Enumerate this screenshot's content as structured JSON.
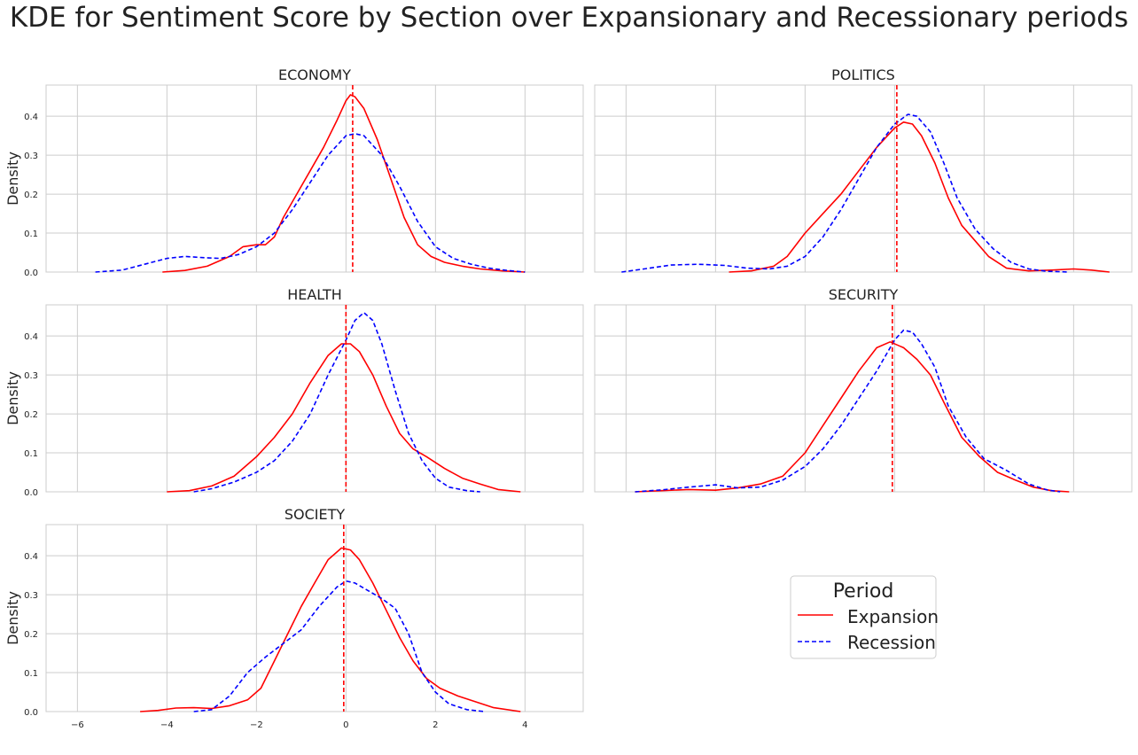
{
  "title": "KDE for Sentiment Score by Section over Expansionary and Recessionary periods",
  "colors": {
    "expansion": "#ff0000",
    "recession": "#0000ff",
    "grid": "#cccccc",
    "frame": "#cccccc",
    "mean_line": "#ff0000"
  },
  "legend": {
    "title": "Period",
    "items": [
      "Expansion",
      "Recession"
    ],
    "placement": "center-right"
  },
  "chart_data": [
    {
      "type": "line",
      "title": "ECONOMY",
      "xlabel": "",
      "ylabel": "Density",
      "xlim": [
        -6.7,
        5.3
      ],
      "ylim": [
        0,
        0.48
      ],
      "xticks": [
        -6,
        -4,
        -2,
        0,
        2,
        4
      ],
      "yticks": [
        0.0,
        0.1,
        0.2,
        0.3,
        0.4
      ],
      "grid": true,
      "mean_line": 0.15,
      "series": [
        {
          "name": "Expansion",
          "style": "solid",
          "x": [
            -4.1,
            -3.6,
            -3.1,
            -2.6,
            -2.3,
            -2.0,
            -1.8,
            -1.6,
            -1.4,
            -1.1,
            -0.8,
            -0.5,
            -0.2,
            0.0,
            0.1,
            0.2,
            0.4,
            0.7,
            1.0,
            1.3,
            1.6,
            1.9,
            2.2,
            2.6,
            3.0,
            3.5,
            4.0
          ],
          "y": [
            0.0,
            0.004,
            0.015,
            0.04,
            0.065,
            0.07,
            0.07,
            0.09,
            0.14,
            0.2,
            0.26,
            0.32,
            0.39,
            0.44,
            0.455,
            0.45,
            0.42,
            0.34,
            0.24,
            0.14,
            0.07,
            0.04,
            0.025,
            0.015,
            0.008,
            0.003,
            0.0
          ]
        },
        {
          "name": "Recession",
          "style": "dashed",
          "x": [
            -5.6,
            -5.0,
            -4.5,
            -4.0,
            -3.6,
            -3.2,
            -2.8,
            -2.4,
            -2.0,
            -1.6,
            -1.2,
            -0.8,
            -0.4,
            0.0,
            0.2,
            0.4,
            0.8,
            1.2,
            1.6,
            2.0,
            2.4,
            2.8,
            3.2,
            3.6,
            4.0
          ],
          "y": [
            0.0,
            0.005,
            0.02,
            0.035,
            0.04,
            0.037,
            0.035,
            0.045,
            0.065,
            0.1,
            0.16,
            0.23,
            0.3,
            0.35,
            0.355,
            0.35,
            0.3,
            0.22,
            0.13,
            0.065,
            0.035,
            0.02,
            0.01,
            0.004,
            0.0
          ]
        }
      ]
    },
    {
      "type": "line",
      "title": "POLITICS",
      "xlabel": "",
      "ylabel": "",
      "xlim": [
        -6.7,
        5.3
      ],
      "ylim": [
        0,
        0.48
      ],
      "xticks": [
        -6,
        -4,
        -2,
        0,
        2,
        4
      ],
      "yticks": [
        0.0,
        0.1,
        0.2,
        0.3,
        0.4
      ],
      "grid": true,
      "mean_line": 0.05,
      "series": [
        {
          "name": "Expansion",
          "style": "solid",
          "x": [
            -3.7,
            -3.2,
            -2.7,
            -2.4,
            -2.0,
            -1.6,
            -1.2,
            -0.8,
            -0.4,
            0.0,
            0.2,
            0.4,
            0.6,
            0.9,
            1.2,
            1.5,
            1.8,
            2.1,
            2.5,
            3.0,
            3.5,
            4.0,
            4.4,
            4.8
          ],
          "y": [
            0.0,
            0.003,
            0.015,
            0.04,
            0.1,
            0.15,
            0.2,
            0.26,
            0.32,
            0.37,
            0.385,
            0.38,
            0.35,
            0.28,
            0.19,
            0.12,
            0.08,
            0.04,
            0.01,
            0.003,
            0.005,
            0.008,
            0.005,
            0.0
          ]
        },
        {
          "name": "Recession",
          "style": "dashed",
          "x": [
            -6.1,
            -5.6,
            -5.0,
            -4.4,
            -3.8,
            -3.3,
            -2.8,
            -2.4,
            -2.0,
            -1.6,
            -1.2,
            -0.8,
            -0.4,
            0.0,
            0.3,
            0.5,
            0.8,
            1.1,
            1.4,
            1.8,
            2.2,
            2.6,
            3.0,
            3.4,
            3.9
          ],
          "y": [
            0.0,
            0.008,
            0.018,
            0.02,
            0.017,
            0.01,
            0.008,
            0.015,
            0.04,
            0.09,
            0.16,
            0.24,
            0.32,
            0.38,
            0.405,
            0.4,
            0.36,
            0.28,
            0.19,
            0.11,
            0.06,
            0.025,
            0.008,
            0.002,
            0.0
          ]
        }
      ]
    },
    {
      "type": "line",
      "title": "HEALTH",
      "xlabel": "",
      "ylabel": "Density",
      "xlim": [
        -6.7,
        5.3
      ],
      "ylim": [
        0,
        0.48
      ],
      "xticks": [
        -6,
        -4,
        -2,
        0,
        2,
        4
      ],
      "yticks": [
        0.0,
        0.1,
        0.2,
        0.3,
        0.4
      ],
      "grid": true,
      "mean_line": 0.0,
      "series": [
        {
          "name": "Expansion",
          "style": "solid",
          "x": [
            -4.0,
            -3.5,
            -3.0,
            -2.5,
            -2.0,
            -1.6,
            -1.2,
            -0.8,
            -0.4,
            -0.1,
            0.1,
            0.3,
            0.6,
            0.9,
            1.2,
            1.5,
            1.8,
            2.2,
            2.6,
            3.0,
            3.4,
            3.9
          ],
          "y": [
            0.0,
            0.003,
            0.015,
            0.04,
            0.09,
            0.14,
            0.2,
            0.28,
            0.35,
            0.38,
            0.38,
            0.36,
            0.3,
            0.22,
            0.15,
            0.11,
            0.09,
            0.06,
            0.035,
            0.02,
            0.006,
            0.0
          ]
        },
        {
          "name": "Recession",
          "style": "dashed",
          "x": [
            -3.4,
            -3.0,
            -2.5,
            -2.0,
            -1.6,
            -1.2,
            -0.8,
            -0.4,
            0.0,
            0.2,
            0.4,
            0.6,
            0.8,
            1.1,
            1.4,
            1.7,
            2.0,
            2.3,
            2.7,
            3.0
          ],
          "y": [
            0.0,
            0.008,
            0.025,
            0.05,
            0.08,
            0.13,
            0.2,
            0.3,
            0.39,
            0.44,
            0.46,
            0.44,
            0.38,
            0.26,
            0.15,
            0.08,
            0.035,
            0.012,
            0.003,
            0.0
          ]
        }
      ]
    },
    {
      "type": "line",
      "title": "SECURITY",
      "xlabel": "",
      "ylabel": "",
      "xlim": [
        -6.7,
        5.3
      ],
      "ylim": [
        0,
        0.48
      ],
      "xticks": [
        -6,
        -4,
        -2,
        0,
        2,
        4
      ],
      "yticks": [
        0.0,
        0.1,
        0.2,
        0.3,
        0.4
      ],
      "grid": true,
      "mean_line": -0.05,
      "series": [
        {
          "name": "Expansion",
          "style": "solid",
          "x": [
            -5.8,
            -5.2,
            -4.6,
            -4.0,
            -3.5,
            -3.0,
            -2.5,
            -2.0,
            -1.6,
            -1.2,
            -0.8,
            -0.4,
            -0.1,
            0.2,
            0.5,
            0.8,
            1.1,
            1.5,
            1.9,
            2.3,
            2.7,
            3.1,
            3.5,
            3.9
          ],
          "y": [
            0.0,
            0.003,
            0.006,
            0.004,
            0.01,
            0.02,
            0.04,
            0.1,
            0.17,
            0.24,
            0.31,
            0.37,
            0.385,
            0.37,
            0.34,
            0.3,
            0.23,
            0.14,
            0.09,
            0.05,
            0.03,
            0.012,
            0.003,
            0.0
          ]
        },
        {
          "name": "Recession",
          "style": "dashed",
          "x": [
            -5.8,
            -5.2,
            -4.6,
            -4.0,
            -3.5,
            -3.0,
            -2.5,
            -2.0,
            -1.6,
            -1.2,
            -0.8,
            -0.4,
            0.0,
            0.2,
            0.4,
            0.6,
            0.9,
            1.2,
            1.6,
            2.0,
            2.5,
            3.0,
            3.4,
            3.7
          ],
          "y": [
            0.0,
            0.005,
            0.012,
            0.018,
            0.01,
            0.012,
            0.03,
            0.065,
            0.11,
            0.17,
            0.24,
            0.31,
            0.39,
            0.415,
            0.41,
            0.38,
            0.32,
            0.22,
            0.14,
            0.085,
            0.055,
            0.02,
            0.005,
            0.0
          ]
        }
      ]
    },
    {
      "type": "line",
      "title": "SOCIETY",
      "xlabel": "",
      "ylabel": "Density",
      "xlim": [
        -6.7,
        5.3
      ],
      "ylim": [
        0,
        0.48
      ],
      "xticks": [
        -6,
        -4,
        -2,
        0,
        2,
        4
      ],
      "yticks": [
        0.0,
        0.1,
        0.2,
        0.3,
        0.4
      ],
      "grid": true,
      "mean_line": -0.05,
      "series": [
        {
          "name": "Expansion",
          "style": "solid",
          "x": [
            -4.6,
            -4.2,
            -3.8,
            -3.4,
            -3.0,
            -2.6,
            -2.2,
            -1.9,
            -1.6,
            -1.3,
            -1.0,
            -0.7,
            -0.4,
            -0.1,
            0.1,
            0.3,
            0.6,
            0.9,
            1.2,
            1.5,
            1.8,
            2.1,
            2.5,
            2.9,
            3.3,
            3.9
          ],
          "y": [
            0.0,
            0.003,
            0.009,
            0.01,
            0.008,
            0.015,
            0.03,
            0.06,
            0.13,
            0.2,
            0.27,
            0.33,
            0.39,
            0.42,
            0.415,
            0.39,
            0.33,
            0.26,
            0.19,
            0.13,
            0.085,
            0.06,
            0.04,
            0.025,
            0.01,
            0.0
          ]
        },
        {
          "name": "Recession",
          "style": "dashed",
          "x": [
            -3.4,
            -3.0,
            -2.6,
            -2.2,
            -1.8,
            -1.4,
            -1.0,
            -0.6,
            -0.2,
            0.0,
            0.2,
            0.5,
            0.8,
            1.1,
            1.4,
            1.7,
            2.0,
            2.3,
            2.7,
            3.1
          ],
          "y": [
            0.0,
            0.005,
            0.04,
            0.1,
            0.14,
            0.175,
            0.21,
            0.27,
            0.32,
            0.335,
            0.33,
            0.31,
            0.29,
            0.265,
            0.2,
            0.1,
            0.05,
            0.02,
            0.005,
            0.0
          ]
        }
      ]
    }
  ]
}
